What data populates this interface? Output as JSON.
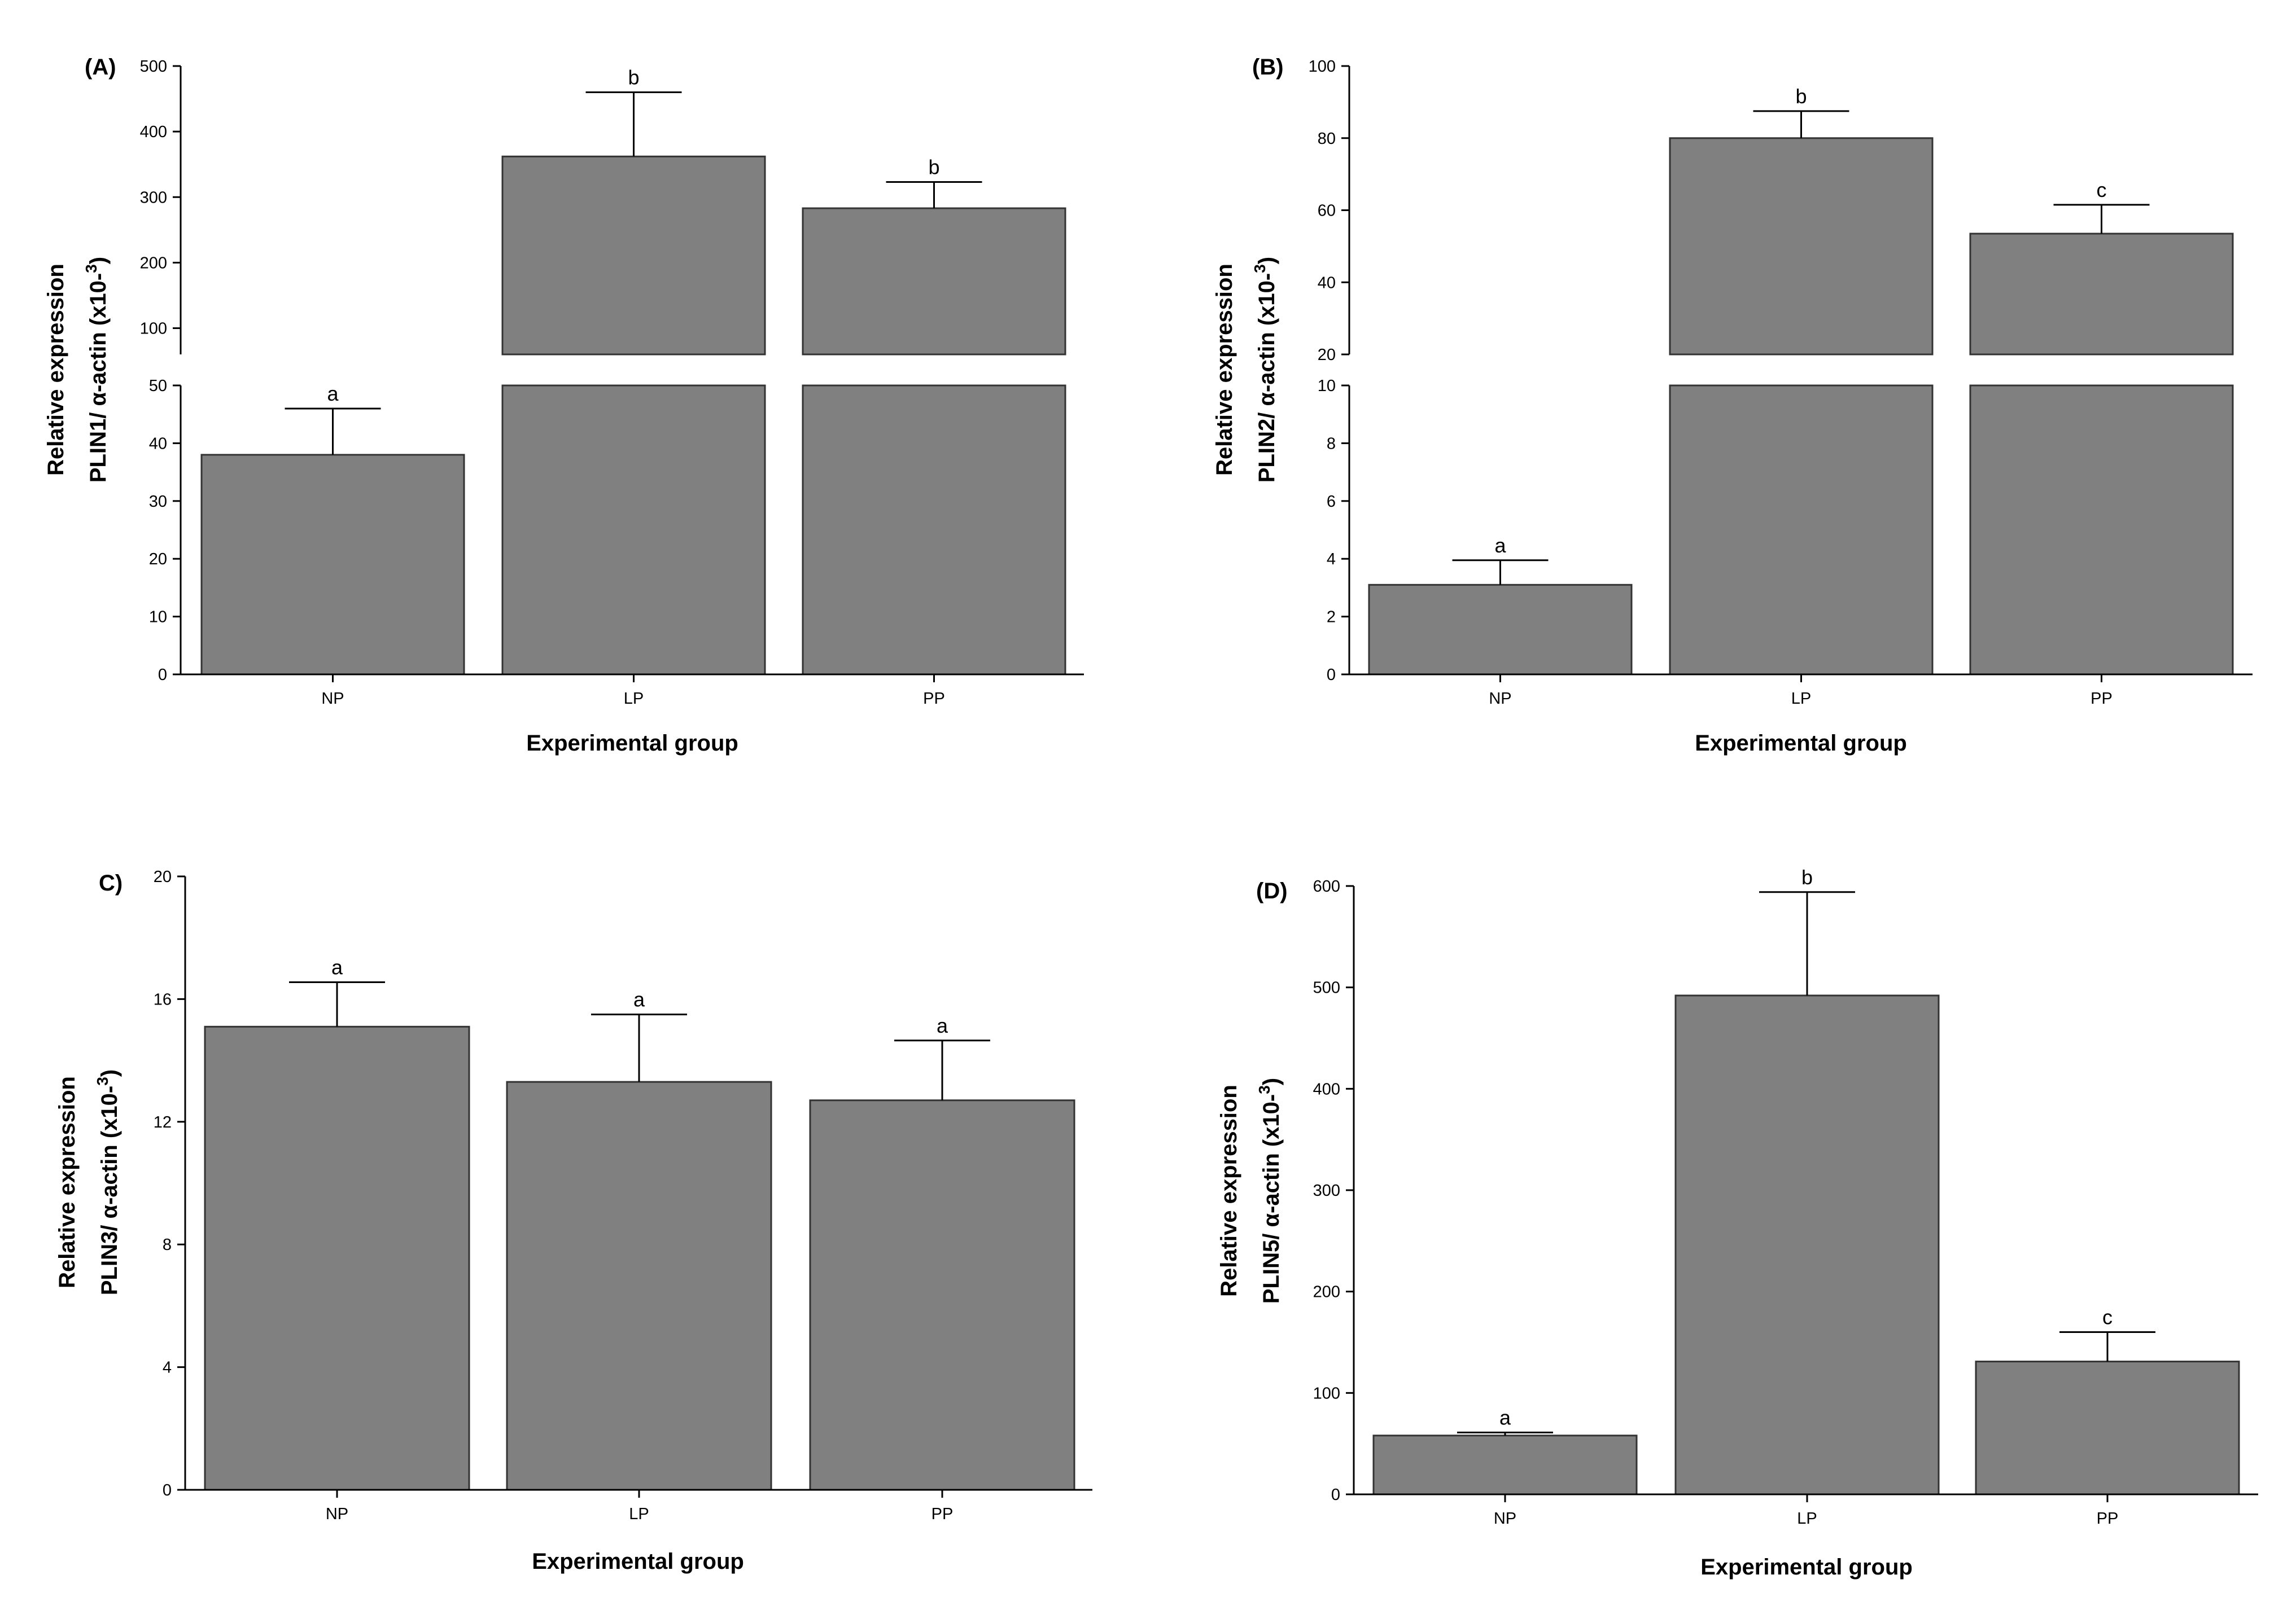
{
  "colors": {
    "bar": "#808080",
    "axis": "#000000",
    "background": "#ffffff"
  },
  "chart_data": [
    {
      "panel": "(A)",
      "type": "bar",
      "categories": [
        "NP",
        "LP",
        "PP"
      ],
      "values": [
        38,
        362,
        283
      ],
      "errors": [
        8,
        98,
        40
      ],
      "letters": [
        "a",
        "b",
        "b"
      ],
      "xlabel": "Experimental group",
      "ylabel_line1": "Relative expression",
      "ylabel_line2": "PLIN1/ α-actin  (x10-",
      "ylabel_sup": "3",
      "ylabel_close": ")",
      "axis_break": true,
      "lower_range": [
        0,
        50
      ],
      "upper_range": [
        60,
        500
      ],
      "lower_ticks": [
        "0",
        "10",
        "20",
        "30",
        "40",
        "50"
      ],
      "upper_ticks": [
        "100",
        "200",
        "300",
        "400",
        "500"
      ]
    },
    {
      "panel": "(B)",
      "type": "bar",
      "categories": [
        "NP",
        "LP",
        "PP"
      ],
      "values": [
        3.1,
        80,
        53.5
      ],
      "errors": [
        0.85,
        7.5,
        8
      ],
      "letters": [
        "a",
        "b",
        "c"
      ],
      "xlabel": "Experimental group",
      "ylabel_line1": "Relative expression",
      "ylabel_line2": "PLIN2/ α-actin  (x10-",
      "ylabel_sup": "3",
      "ylabel_close": ")",
      "axis_break": true,
      "lower_range": [
        0,
        10
      ],
      "upper_range": [
        20,
        100
      ],
      "lower_ticks": [
        "0",
        "2",
        "4",
        "6",
        "8",
        "10"
      ],
      "upper_ticks": [
        "20",
        "40",
        "60",
        "80",
        "100"
      ]
    },
    {
      "panel": "C)",
      "type": "bar",
      "categories": [
        "NP",
        "LP",
        "PP"
      ],
      "values": [
        15.1,
        13.3,
        12.7
      ],
      "errors": [
        1.45,
        2.2,
        1.95
      ],
      "letters": [
        "a",
        "a",
        "a"
      ],
      "xlabel": "Experimental group",
      "ylabel_line1": "Relative expression",
      "ylabel_line2": "PLIN3/ α-actin  (x10-",
      "ylabel_sup": "3",
      "ylabel_close": ")",
      "axis_break": false,
      "ylim": [
        0,
        20
      ],
      "ticks": [
        "0",
        "4",
        "8",
        "12",
        "16",
        "20"
      ]
    },
    {
      "panel": "(D)",
      "type": "bar",
      "categories": [
        "NP",
        "LP",
        "PP"
      ],
      "values": [
        58,
        492,
        131
      ],
      "errors": [
        3,
        102,
        29
      ],
      "letters": [
        "a",
        "b",
        "c"
      ],
      "xlabel": "Experimental group",
      "ylabel_line1": "Relative expression",
      "ylabel_line2": "PLIN5/ α-actin  (x10-",
      "ylabel_sup": "3",
      "ylabel_close": ")",
      "axis_break": false,
      "ylim": [
        0,
        600
      ],
      "ticks": [
        "0",
        "100",
        "200",
        "300",
        "400",
        "500",
        "600"
      ]
    }
  ]
}
